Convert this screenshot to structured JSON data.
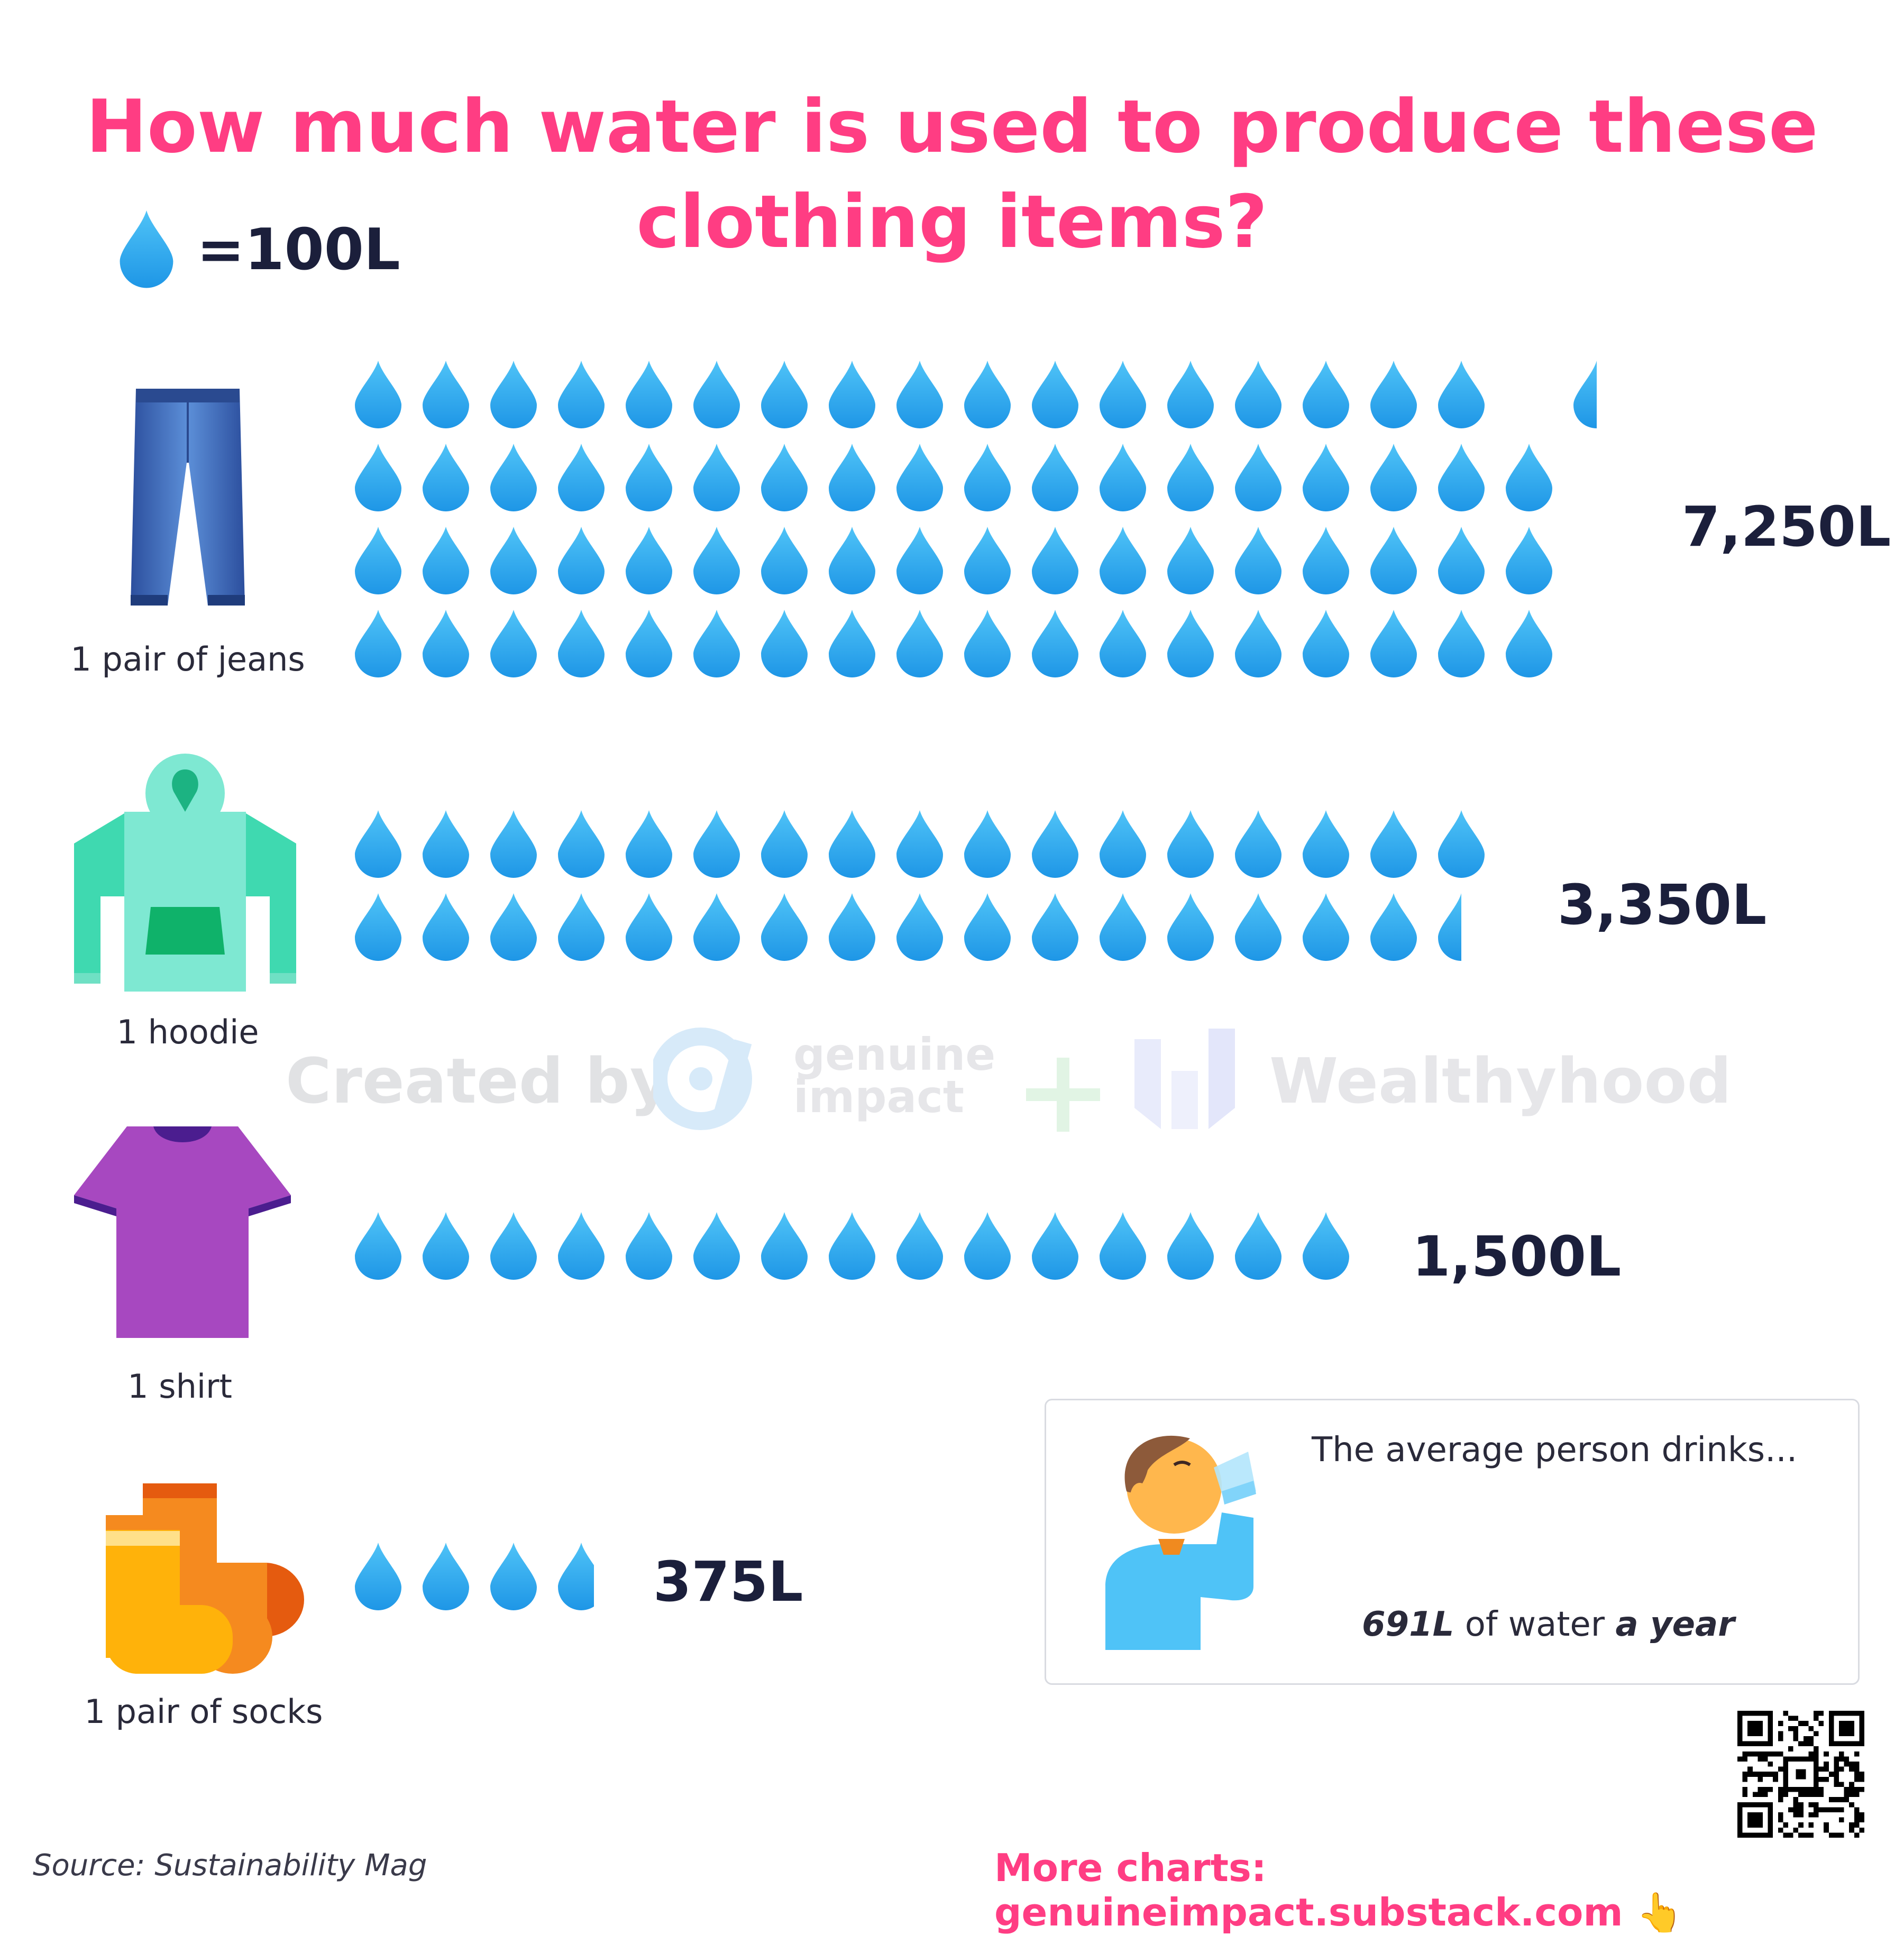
{
  "header": {
    "title": "How much water is used to produce these clothing items?",
    "legend_text": "=100L"
  },
  "chart_data": {
    "type": "pictograph",
    "title": "How much water is used to produce these clothing items?",
    "unit_per_icon": 100,
    "unit": "L",
    "categories": [
      "1 pair of jeans",
      "1 hoodie",
      "1 shirt",
      "1 pair of socks"
    ],
    "values": [
      7250,
      3350,
      1500,
      375
    ],
    "value_labels": [
      "7,250L",
      "3,350L",
      "1,500L",
      "375L"
    ]
  },
  "items": [
    {
      "label": "1 pair of jeans",
      "value_label": "7,250L",
      "icon": "jeans-icon"
    },
    {
      "label": "1 hoodie",
      "value_label": "3,350L",
      "icon": "hoodie-icon"
    },
    {
      "label": "1 shirt",
      "value_label": "1,500L",
      "icon": "shirt-icon"
    },
    {
      "label": "1 pair of socks",
      "value_label": "375L",
      "icon": "socks-icon"
    }
  ],
  "watermark": {
    "created_by": "Created by",
    "brand_1_line1": "genuine",
    "brand_1_line2": "impact",
    "brand_2": "Wealthyhood"
  },
  "drink_box": {
    "intro": "The average person drinks...",
    "amount": "691L",
    "middle": "of water",
    "period": "a year",
    "value": 691,
    "icon": "person-drinking-icon"
  },
  "footer": {
    "source": "Source: Sustainability Mag",
    "more_charts": "More charts: genuineimpact.substack.com 👆"
  },
  "colors": {
    "title": "#ff3d83",
    "drop_top": "#4fc3f7",
    "drop_bottom": "#1e96e6",
    "text_dark": "#1b1f3b"
  }
}
